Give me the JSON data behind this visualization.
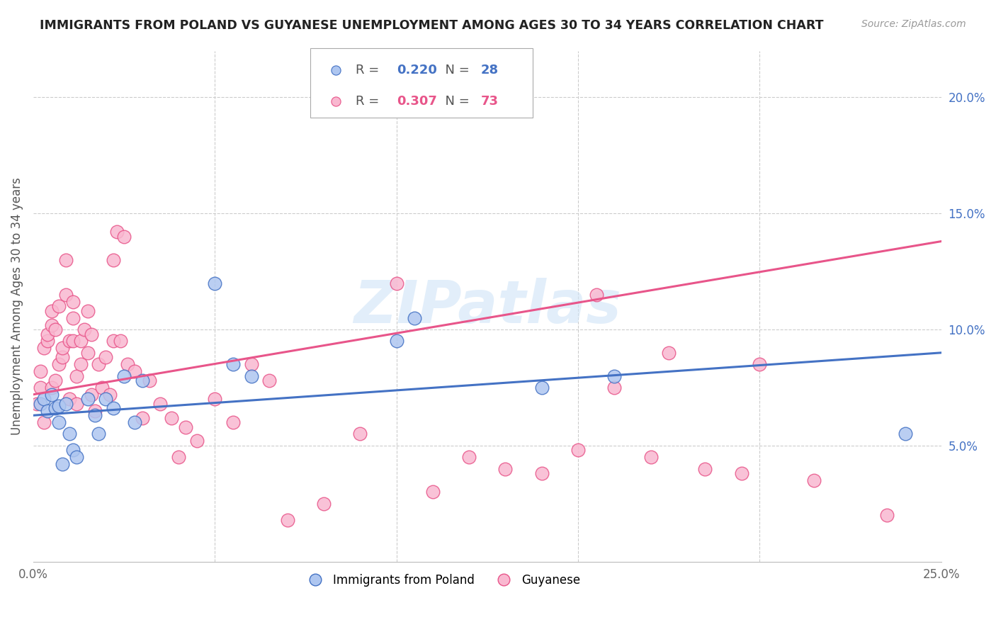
{
  "title": "IMMIGRANTS FROM POLAND VS GUYANESE UNEMPLOYMENT AMONG AGES 30 TO 34 YEARS CORRELATION CHART",
  "source": "Source: ZipAtlas.com",
  "ylabel": "Unemployment Among Ages 30 to 34 years",
  "xlim": [
    0.0,
    0.25
  ],
  "ylim": [
    0.0,
    0.22
  ],
  "yticks_right": [
    0.05,
    0.1,
    0.15,
    0.2
  ],
  "ytick_right_labels": [
    "5.0%",
    "10.0%",
    "15.0%",
    "20.0%"
  ],
  "blue_fill": "#aec6f0",
  "pink_fill": "#f9b8d0",
  "blue_edge": "#4472c4",
  "pink_edge": "#e8558a",
  "blue_line": "#4472c4",
  "pink_line": "#e8558a",
  "legend1_R": "0.220",
  "legend1_N": "28",
  "legend2_R": "0.307",
  "legend2_N": "73",
  "watermark": "ZIPatlas",
  "blue_scatter_x": [
    0.002,
    0.003,
    0.004,
    0.005,
    0.006,
    0.007,
    0.007,
    0.008,
    0.009,
    0.01,
    0.011,
    0.012,
    0.015,
    0.017,
    0.018,
    0.02,
    0.022,
    0.025,
    0.028,
    0.03,
    0.05,
    0.055,
    0.06,
    0.1,
    0.105,
    0.14,
    0.16,
    0.24
  ],
  "blue_scatter_y": [
    0.068,
    0.07,
    0.065,
    0.072,
    0.066,
    0.067,
    0.06,
    0.042,
    0.068,
    0.055,
    0.048,
    0.045,
    0.07,
    0.063,
    0.055,
    0.07,
    0.066,
    0.08,
    0.06,
    0.078,
    0.12,
    0.085,
    0.08,
    0.095,
    0.105,
    0.075,
    0.08,
    0.055
  ],
  "pink_scatter_x": [
    0.001,
    0.002,
    0.002,
    0.003,
    0.003,
    0.004,
    0.004,
    0.005,
    0.005,
    0.005,
    0.006,
    0.006,
    0.007,
    0.007,
    0.008,
    0.008,
    0.009,
    0.009,
    0.01,
    0.01,
    0.011,
    0.011,
    0.011,
    0.012,
    0.012,
    0.013,
    0.013,
    0.014,
    0.015,
    0.015,
    0.016,
    0.016,
    0.017,
    0.018,
    0.019,
    0.02,
    0.021,
    0.022,
    0.022,
    0.023,
    0.024,
    0.025,
    0.026,
    0.028,
    0.03,
    0.032,
    0.035,
    0.038,
    0.04,
    0.042,
    0.045,
    0.05,
    0.055,
    0.06,
    0.065,
    0.07,
    0.08,
    0.09,
    0.1,
    0.11,
    0.12,
    0.13,
    0.14,
    0.15,
    0.155,
    0.16,
    0.17,
    0.175,
    0.185,
    0.195,
    0.2,
    0.215,
    0.235
  ],
  "pink_scatter_y": [
    0.068,
    0.075,
    0.082,
    0.06,
    0.092,
    0.095,
    0.098,
    0.102,
    0.075,
    0.108,
    0.078,
    0.1,
    0.085,
    0.11,
    0.088,
    0.092,
    0.115,
    0.13,
    0.07,
    0.095,
    0.095,
    0.112,
    0.105,
    0.068,
    0.08,
    0.085,
    0.095,
    0.1,
    0.09,
    0.108,
    0.072,
    0.098,
    0.065,
    0.085,
    0.075,
    0.088,
    0.072,
    0.095,
    0.13,
    0.142,
    0.095,
    0.14,
    0.085,
    0.082,
    0.062,
    0.078,
    0.068,
    0.062,
    0.045,
    0.058,
    0.052,
    0.07,
    0.06,
    0.085,
    0.078,
    0.018,
    0.025,
    0.055,
    0.12,
    0.03,
    0.045,
    0.04,
    0.038,
    0.048,
    0.115,
    0.075,
    0.045,
    0.09,
    0.04,
    0.038,
    0.085,
    0.035,
    0.02
  ]
}
